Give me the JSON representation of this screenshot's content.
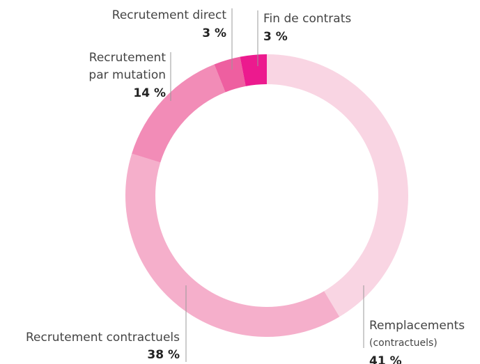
{
  "chart_data": {
    "type": "donut",
    "categories": [
      "Remplacements",
      "Recrutement contractuels",
      "Recrutement par mutation",
      "Recrutement direct",
      "Fin de contrats"
    ],
    "category_notes": [
      "(contractuels)",
      null,
      null,
      null,
      null
    ],
    "values": [
      41,
      38,
      14,
      3,
      3
    ],
    "value_labels": [
      "41 %",
      "38 %",
      "14 %",
      "3 %",
      "3 %"
    ],
    "colors": [
      "#f9d5e3",
      "#f5afcb",
      "#f28cb7",
      "#ee5fa0",
      "#ec1a8e"
    ]
  }
}
